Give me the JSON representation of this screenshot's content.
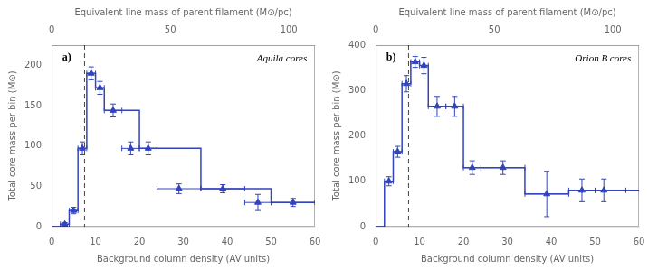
{
  "chart_data": [
    {
      "type": "line",
      "panel_label": "a)",
      "annotation": "Aquila cores",
      "ylabel": "Total core mass per bin (M⊙)",
      "xlabel": "Background column density (AV units)",
      "x2label": "Equivalent line mass of parent filament (M⊙/pc)",
      "xlim": [
        0,
        60
      ],
      "xticks": [
        0,
        10,
        20,
        30,
        40,
        50,
        60
      ],
      "x2lim": [
        0,
        111
      ],
      "x2ticks": [
        0,
        50,
        100
      ],
      "ylim": [
        0,
        225
      ],
      "yticks": [
        0,
        50,
        100,
        150,
        200
      ],
      "grid": false,
      "vlines": [
        {
          "x": 7.5,
          "color": "#444444",
          "line_style": "dashed"
        }
      ],
      "series": [
        {
          "type": "step",
          "line_style": "solid",
          "color": "#3344bb",
          "x": [
            0,
            2,
            4,
            6,
            8,
            10,
            12,
            16,
            20,
            24,
            34,
            44,
            50,
            60
          ],
          "values": [
            0,
            3,
            20,
            97,
            190,
            172,
            144,
            144,
            97,
            97,
            47,
            47,
            30,
            30
          ]
        },
        {
          "type": "scatter",
          "marker": "triangle",
          "color": "#3344bb",
          "x": [
            3,
            5,
            7,
            9,
            11,
            14,
            18,
            22,
            29,
            39,
            47,
            55
          ],
          "values": [
            3,
            20,
            97,
            190,
            172,
            144,
            97,
            97,
            47,
            47,
            30,
            30
          ],
          "xerr": [
            1,
            1,
            1,
            1,
            1,
            2,
            2,
            2,
            5,
            5,
            3,
            5
          ],
          "yerr": [
            2,
            4,
            8,
            8,
            8,
            8,
            8,
            8,
            6,
            5,
            10,
            5
          ]
        }
      ]
    },
    {
      "type": "line",
      "panel_label": "b)",
      "annotation": "Orion B cores",
      "ylabel": "Total core mass per bin (M⊙)",
      "xlabel": "Background column density (AV units)",
      "x2label": "Equivalent line mass of parent filament (M⊙/pc)",
      "xlim": [
        0,
        60
      ],
      "xticks": [
        0,
        10,
        20,
        30,
        40,
        50,
        60
      ],
      "x2lim": [
        0,
        111
      ],
      "x2ticks": [
        0,
        50,
        100
      ],
      "ylim": [
        0,
        400
      ],
      "yticks": [
        0,
        100,
        200,
        300,
        400
      ],
      "grid": false,
      "vlines": [
        {
          "x": 7.5,
          "color": "#444444",
          "line_style": "dashed"
        }
      ],
      "series": [
        {
          "type": "step",
          "line_style": "solid",
          "color": "#3344bb",
          "x": [
            0,
            2,
            4,
            6,
            8,
            10,
            12,
            16,
            20,
            24,
            34,
            44,
            60
          ],
          "values": [
            0,
            100,
            165,
            315,
            363,
            355,
            265,
            265,
            130,
            130,
            72,
            80,
            80
          ]
        },
        {
          "type": "scatter",
          "marker": "triangle",
          "color": "#3344bb",
          "x": [
            3,
            5,
            7,
            9,
            11,
            14,
            18,
            22,
            29,
            39,
            47,
            52
          ],
          "values": [
            100,
            165,
            315,
            363,
            355,
            265,
            265,
            130,
            130,
            72,
            80,
            80
          ],
          "xerr": [
            1,
            1,
            1,
            1,
            1,
            2,
            2,
            2,
            5,
            5,
            3,
            5
          ],
          "yerr": [
            10,
            12,
            18,
            12,
            18,
            22,
            22,
            15,
            15,
            50,
            25,
            25
          ]
        }
      ]
    }
  ]
}
